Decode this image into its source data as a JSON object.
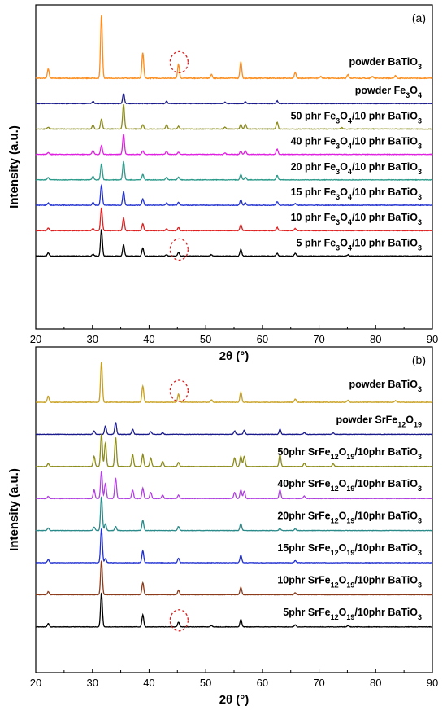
{
  "chart_data": [
    {
      "type": "line",
      "panel_label": "(a)",
      "xlabel": "2θ (°)",
      "ylabel": "Intensity (a.u.)",
      "xlim": [
        20,
        90
      ],
      "xticks": [
        20,
        30,
        40,
        50,
        60,
        70,
        80,
        90
      ],
      "grid": false,
      "legend": "labels above each curve, right side",
      "annotation_circles_at_x": [
        45.3,
        45.3
      ],
      "series": [
        {
          "name": [
            "powder BaTiO",
            {
              "sub": "3"
            }
          ],
          "color": "#ff8c1a",
          "peaks": [
            [
              22.2,
              0.15
            ],
            [
              31.6,
              1.0
            ],
            [
              38.9,
              0.4
            ],
            [
              45.2,
              0.22
            ],
            [
              51.0,
              0.06
            ],
            [
              56.2,
              0.26
            ],
            [
              65.8,
              0.09
            ],
            [
              70.3,
              0.03
            ],
            [
              75.1,
              0.06
            ],
            [
              79.4,
              0.03
            ],
            [
              83.5,
              0.04
            ]
          ]
        },
        {
          "name": [
            "powder Fe",
            {
              "sub": "3"
            },
            "O",
            {
              "sub": "4"
            }
          ],
          "color": "#1a1a8c",
          "peaks": [
            [
              30.1,
              0.05
            ],
            [
              35.5,
              0.22
            ],
            [
              43.1,
              0.05
            ],
            [
              53.4,
              0.03
            ],
            [
              57.0,
              0.04
            ],
            [
              62.6,
              0.06
            ]
          ]
        },
        {
          "name": [
            "50 phr Fe",
            {
              "sub": "3"
            },
            "O",
            {
              "sub": "4"
            },
            "/10 phr BaTiO",
            {
              "sub": "3"
            }
          ],
          "color": "#8c8c1a",
          "peaks": [
            [
              22.2,
              0.04
            ],
            [
              30.1,
              0.09
            ],
            [
              31.6,
              0.22
            ],
            [
              35.5,
              0.55
            ],
            [
              38.9,
              0.1
            ],
            [
              43.1,
              0.09
            ],
            [
              45.2,
              0.06
            ],
            [
              53.4,
              0.04
            ],
            [
              56.2,
              0.1
            ],
            [
              57.0,
              0.1
            ],
            [
              62.6,
              0.15
            ],
            [
              74.0,
              0.03
            ]
          ]
        },
        {
          "name": [
            "40 phr Fe",
            {
              "sub": "3"
            },
            "O",
            {
              "sub": "4"
            },
            "/10 phr BaTiO",
            {
              "sub": "3"
            }
          ],
          "color": "#e020e0",
          "peaks": [
            [
              22.2,
              0.04
            ],
            [
              30.1,
              0.09
            ],
            [
              31.6,
              0.2
            ],
            [
              35.5,
              0.45
            ],
            [
              38.9,
              0.08
            ],
            [
              43.1,
              0.07
            ],
            [
              45.2,
              0.05
            ],
            [
              53.4,
              0.03
            ],
            [
              56.2,
              0.08
            ],
            [
              57.0,
              0.08
            ],
            [
              62.6,
              0.12
            ]
          ]
        },
        {
          "name": [
            "20 phr Fe",
            {
              "sub": "3"
            },
            "O",
            {
              "sub": "4"
            },
            "/10 phr BaTiO",
            {
              "sub": "3"
            }
          ],
          "color": "#2a9a8a",
          "peaks": [
            [
              22.2,
              0.05
            ],
            [
              30.1,
              0.08
            ],
            [
              31.6,
              0.35
            ],
            [
              35.5,
              0.4
            ],
            [
              38.9,
              0.12
            ],
            [
              43.1,
              0.06
            ],
            [
              45.2,
              0.06
            ],
            [
              56.2,
              0.12
            ],
            [
              57.0,
              0.06
            ],
            [
              62.6,
              0.1
            ]
          ]
        },
        {
          "name": [
            "15 phr Fe",
            {
              "sub": "3"
            },
            "O",
            {
              "sub": "4"
            },
            "/10 phr BaTiO",
            {
              "sub": "3"
            }
          ],
          "color": "#2030d0",
          "peaks": [
            [
              22.2,
              0.05
            ],
            [
              30.1,
              0.06
            ],
            [
              31.6,
              0.45
            ],
            [
              35.5,
              0.3
            ],
            [
              38.9,
              0.14
            ],
            [
              43.1,
              0.05
            ],
            [
              45.2,
              0.06
            ],
            [
              56.2,
              0.12
            ],
            [
              57.0,
              0.05
            ],
            [
              62.6,
              0.08
            ],
            [
              65.8,
              0.04
            ]
          ]
        },
        {
          "name": [
            "10 phr Fe",
            {
              "sub": "3"
            },
            "O",
            {
              "sub": "4"
            },
            "/10 phr BaTiO",
            {
              "sub": "3"
            }
          ],
          "color": "#e02020",
          "peaks": [
            [
              22.2,
              0.06
            ],
            [
              30.1,
              0.05
            ],
            [
              31.6,
              0.5
            ],
            [
              35.5,
              0.28
            ],
            [
              38.9,
              0.15
            ],
            [
              43.1,
              0.04
            ],
            [
              45.2,
              0.07
            ],
            [
              56.2,
              0.13
            ],
            [
              62.6,
              0.07
            ],
            [
              65.8,
              0.05
            ]
          ]
        },
        {
          "name": [
            "5 phr Fe",
            {
              "sub": "3"
            },
            "O",
            {
              "sub": "4"
            },
            "/10 phr BaTiO",
            {
              "sub": "3"
            }
          ],
          "color": "#000000",
          "peaks": [
            [
              22.2,
              0.07
            ],
            [
              30.1,
              0.04
            ],
            [
              31.6,
              0.6
            ],
            [
              35.5,
              0.25
            ],
            [
              38.9,
              0.18
            ],
            [
              43.1,
              0.03
            ],
            [
              45.2,
              0.08
            ],
            [
              51.0,
              0.03
            ],
            [
              56.2,
              0.15
            ],
            [
              62.6,
              0.06
            ],
            [
              65.8,
              0.06
            ],
            [
              75.1,
              0.03
            ]
          ]
        }
      ]
    },
    {
      "type": "line",
      "panel_label": "(b)",
      "xlabel": "2θ (°)",
      "ylabel": "Intensity (a.u.)",
      "xlim": [
        20,
        90
      ],
      "xticks": [
        20,
        30,
        40,
        50,
        60,
        70,
        80,
        90
      ],
      "grid": false,
      "legend": "labels above each curve, right side",
      "annotation_circles_at_x": [
        45.3,
        45.3
      ],
      "series": [
        {
          "name": [
            "powder BaTiO",
            {
              "sub": "3"
            }
          ],
          "color": "#c8a020",
          "peaks": [
            [
              22.2,
              0.15
            ],
            [
              31.6,
              1.0
            ],
            [
              38.9,
              0.4
            ],
            [
              45.2,
              0.2
            ],
            [
              51.0,
              0.06
            ],
            [
              56.2,
              0.25
            ],
            [
              65.8,
              0.08
            ],
            [
              75.1,
              0.05
            ],
            [
              83.5,
              0.04
            ]
          ]
        },
        {
          "name": [
            "powder SrFe",
            {
              "sub": "12"
            },
            "O",
            {
              "sub": "19"
            }
          ],
          "color": "#1a1a8c",
          "peaks": [
            [
              30.3,
              0.1
            ],
            [
              32.3,
              0.25
            ],
            [
              34.1,
              0.35
            ],
            [
              37.1,
              0.15
            ],
            [
              40.3,
              0.08
            ],
            [
              42.4,
              0.05
            ],
            [
              55.1,
              0.1
            ],
            [
              56.8,
              0.12
            ],
            [
              63.1,
              0.15
            ],
            [
              67.4,
              0.05
            ],
            [
              72.5,
              0.04
            ]
          ]
        },
        {
          "name": [
            "50phr SrFe",
            {
              "sub": "12"
            },
            "O",
            {
              "sub": "19"
            },
            "/10phr BaTiO",
            {
              "sub": "3"
            }
          ],
          "color": "#8c8c1a",
          "peaks": [
            [
              22.2,
              0.08
            ],
            [
              30.3,
              0.3
            ],
            [
              31.6,
              0.95
            ],
            [
              32.3,
              0.7
            ],
            [
              34.1,
              0.85
            ],
            [
              37.1,
              0.35
            ],
            [
              38.9,
              0.35
            ],
            [
              40.3,
              0.25
            ],
            [
              42.4,
              0.15
            ],
            [
              45.2,
              0.12
            ],
            [
              55.1,
              0.25
            ],
            [
              56.2,
              0.3
            ],
            [
              56.8,
              0.3
            ],
            [
              63.1,
              0.35
            ],
            [
              67.4,
              0.1
            ],
            [
              72.5,
              0.08
            ]
          ]
        },
        {
          "name": [
            "40phr SrFe",
            {
              "sub": "12"
            },
            "O",
            {
              "sub": "19"
            },
            "/10phr BaTiO",
            {
              "sub": "3"
            }
          ],
          "color": "#b040e0",
          "peaks": [
            [
              22.2,
              0.06
            ],
            [
              30.3,
              0.25
            ],
            [
              31.6,
              0.8
            ],
            [
              32.3,
              0.45
            ],
            [
              34.1,
              0.6
            ],
            [
              37.1,
              0.25
            ],
            [
              38.9,
              0.3
            ],
            [
              40.3,
              0.18
            ],
            [
              42.4,
              0.1
            ],
            [
              45.2,
              0.1
            ],
            [
              55.1,
              0.18
            ],
            [
              56.2,
              0.25
            ],
            [
              56.8,
              0.22
            ],
            [
              63.1,
              0.25
            ],
            [
              67.4,
              0.07
            ]
          ]
        },
        {
          "name": [
            "20phr SrFe",
            {
              "sub": "12"
            },
            "O",
            {
              "sub": "19"
            },
            "/10phr BaTiO",
            {
              "sub": "3"
            }
          ],
          "color": "#2a8a8a",
          "peaks": [
            [
              22.2,
              0.08
            ],
            [
              30.3,
              0.1
            ],
            [
              31.6,
              1.0
            ],
            [
              32.3,
              0.2
            ],
            [
              34.1,
              0.12
            ],
            [
              38.9,
              0.3
            ],
            [
              45.2,
              0.12
            ],
            [
              56.2,
              0.2
            ],
            [
              63.1,
              0.06
            ],
            [
              65.8,
              0.05
            ]
          ]
        },
        {
          "name": [
            "15phr SrFe",
            {
              "sub": "12"
            },
            "O",
            {
              "sub": "19"
            },
            "/10phr BaTiO",
            {
              "sub": "3"
            }
          ],
          "color": "#2030d0",
          "peaks": [
            [
              22.2,
              0.09
            ],
            [
              31.6,
              1.0
            ],
            [
              32.3,
              0.12
            ],
            [
              38.9,
              0.35
            ],
            [
              45.2,
              0.13
            ],
            [
              56.2,
              0.22
            ],
            [
              65.8,
              0.06
            ]
          ]
        },
        {
          "name": [
            "10phr SrFe",
            {
              "sub": "12"
            },
            "O",
            {
              "sub": "19"
            },
            "/10phr BaTiO",
            {
              "sub": "3"
            }
          ],
          "color": "#8b3a1a",
          "peaks": [
            [
              22.2,
              0.09
            ],
            [
              31.6,
              1.0
            ],
            [
              38.9,
              0.35
            ],
            [
              45.2,
              0.13
            ],
            [
              56.2,
              0.22
            ],
            [
              65.8,
              0.06
            ]
          ]
        },
        {
          "name": [
            "5phr SrFe",
            {
              "sub": "12"
            },
            "O",
            {
              "sub": "19"
            },
            "/10phr BaTiO",
            {
              "sub": "3"
            }
          ],
          "color": "#000000",
          "peaks": [
            [
              22.2,
              0.1
            ],
            [
              31.6,
              1.0
            ],
            [
              38.9,
              0.35
            ],
            [
              45.2,
              0.14
            ],
            [
              51.0,
              0.04
            ],
            [
              56.2,
              0.22
            ],
            [
              65.8,
              0.06
            ],
            [
              75.1,
              0.04
            ]
          ]
        }
      ]
    }
  ]
}
